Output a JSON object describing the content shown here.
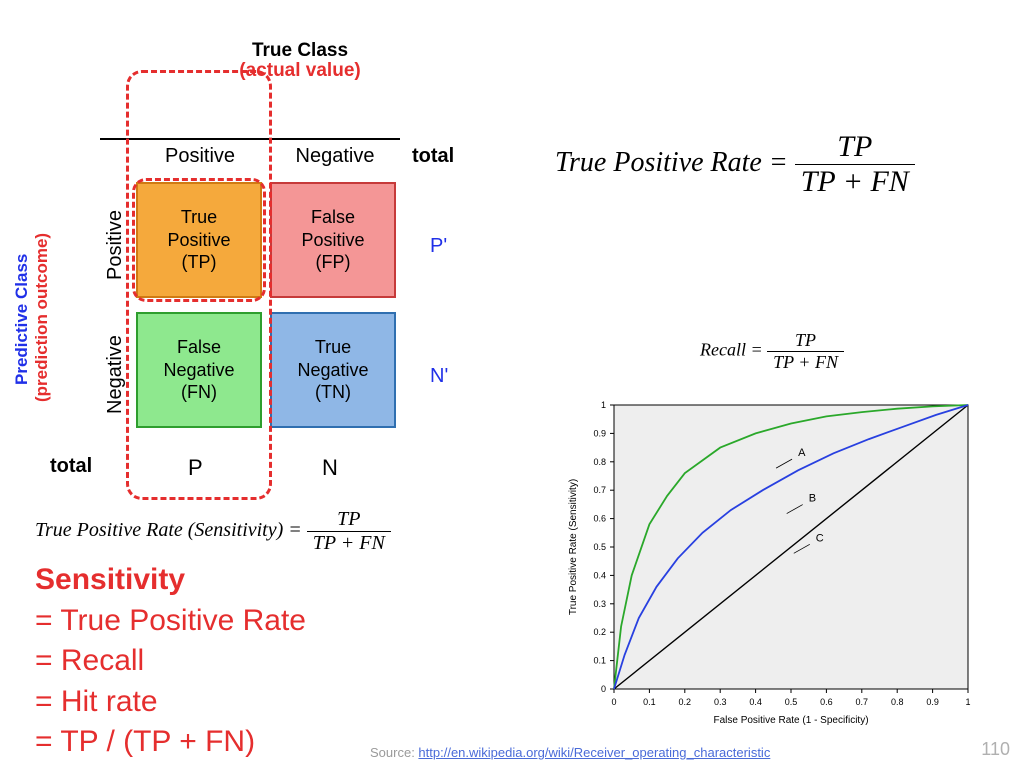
{
  "confusion_matrix": {
    "top_title": "True Class",
    "top_subtitle": "(actual value)",
    "side_title": "Predictive Class",
    "side_subtitle": "(prediction outcome)",
    "col_headers": [
      "Positive",
      "Negative"
    ],
    "row_headers": [
      "Positive",
      "Negative"
    ],
    "total_label": "total",
    "row_totals": [
      "P'",
      "N'"
    ],
    "col_totals": [
      "P",
      "N"
    ],
    "cells": {
      "tp": {
        "line1": "True",
        "line2": "Positive",
        "abbr": "(TP)",
        "fill": "#f5a93c",
        "border": "#d07a12"
      },
      "fp": {
        "line1": "False",
        "line2": "Positive",
        "abbr": "(FP)",
        "fill": "#f49696",
        "border": "#c63a3a"
      },
      "fn": {
        "line1": "False",
        "line2": "Negative",
        "abbr": "(FN)",
        "fill": "#8ee88e",
        "border": "#2e9e2e"
      },
      "tn": {
        "line1": "True",
        "line2": "Negative",
        "abbr": "(TN)",
        "fill": "#8fb7e6",
        "border": "#2f6fb0"
      }
    },
    "highlight_color": "#e52e2e",
    "side_title_color": "#2030e8"
  },
  "equations": {
    "tpr_sensitivity": {
      "lhs": "True Positive Rate (Sensitivity) =",
      "num": "TP",
      "den": "TP + FN"
    },
    "tpr_main": {
      "lhs": "True Positive Rate =",
      "num": "TP",
      "den": "TP + FN"
    },
    "recall": {
      "lhs": "Recall =",
      "num": "TP",
      "den": "TP + FN"
    }
  },
  "sensitivity_block": {
    "title": "Sensitivity",
    "lines": [
      "= True Positive Rate",
      "=  Recall",
      "=  Hit rate",
      "=  TP / (TP + FN)"
    ],
    "color": "#e52e2e"
  },
  "roc_chart": {
    "type": "line",
    "xlabel": "False Positive Rate (1 - Specificity)",
    "ylabel": "True Positive Rate (Sensitivity)",
    "label_fontsize": 10,
    "tick_fontsize": 9,
    "xlim": [
      0,
      1
    ],
    "ylim": [
      0,
      1
    ],
    "tick_step": 0.1,
    "background_color": "#eeeeee",
    "border_color": "#000000",
    "diagonal_color": "#000000",
    "curves": {
      "A": {
        "color": "#2aa82a",
        "label_pos": [
          0.52,
          0.82
        ],
        "points": [
          [
            0,
            0
          ],
          [
            0.02,
            0.22
          ],
          [
            0.05,
            0.4
          ],
          [
            0.1,
            0.58
          ],
          [
            0.15,
            0.68
          ],
          [
            0.2,
            0.76
          ],
          [
            0.3,
            0.85
          ],
          [
            0.4,
            0.9
          ],
          [
            0.5,
            0.935
          ],
          [
            0.6,
            0.96
          ],
          [
            0.7,
            0.975
          ],
          [
            0.8,
            0.987
          ],
          [
            0.9,
            0.995
          ],
          [
            1,
            1
          ]
        ]
      },
      "B": {
        "color": "#2840e0",
        "label_pos": [
          0.55,
          0.66
        ],
        "points": [
          [
            0,
            0
          ],
          [
            0.03,
            0.12
          ],
          [
            0.07,
            0.25
          ],
          [
            0.12,
            0.36
          ],
          [
            0.18,
            0.46
          ],
          [
            0.25,
            0.55
          ],
          [
            0.33,
            0.63
          ],
          [
            0.42,
            0.7
          ],
          [
            0.52,
            0.77
          ],
          [
            0.62,
            0.83
          ],
          [
            0.72,
            0.88
          ],
          [
            0.82,
            0.925
          ],
          [
            0.91,
            0.965
          ],
          [
            1,
            1
          ]
        ]
      },
      "C": {
        "color": "#000000",
        "label_pos": [
          0.57,
          0.52
        ]
      }
    }
  },
  "footer": {
    "source_prefix": "Source:  ",
    "source_url_text": "http://en.wikipedia.org/wiki/Receiver_operating_characteristic",
    "page_number": "110"
  }
}
